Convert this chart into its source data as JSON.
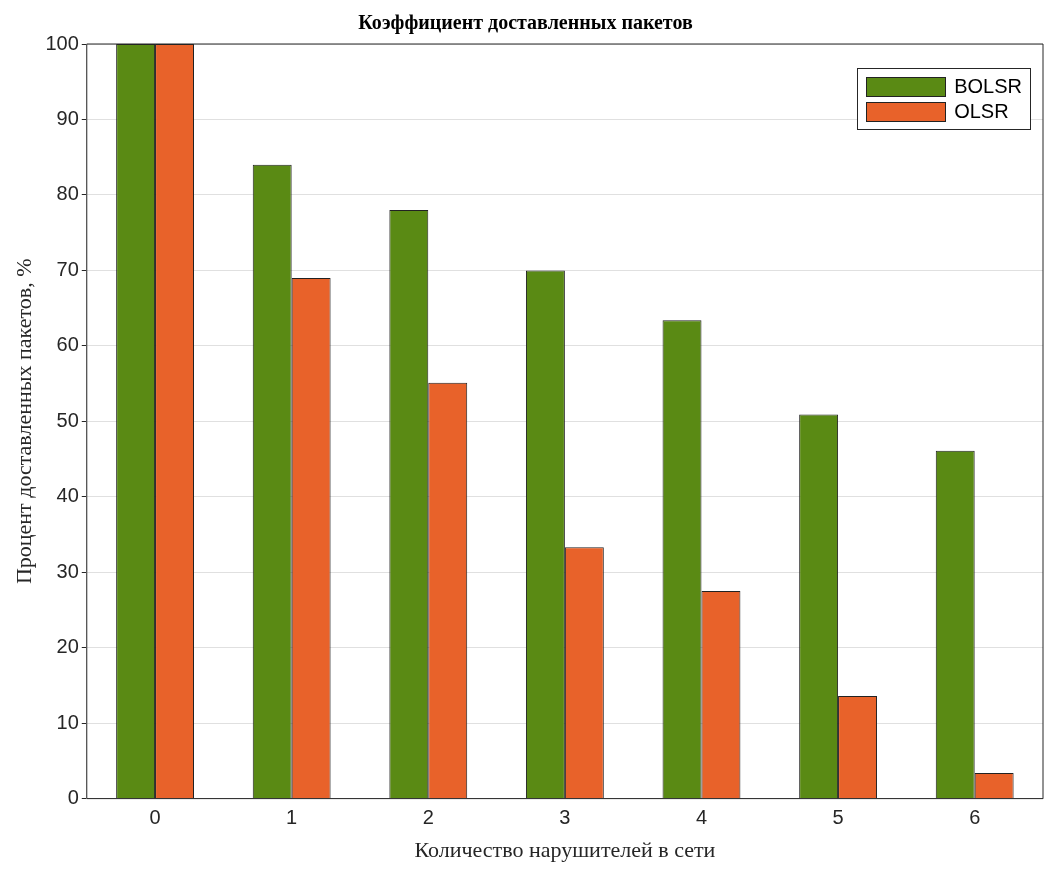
{
  "chart_data": {
    "type": "bar",
    "title": "Коэффициент доставленных пакетов",
    "xlabel": "Количество нарушителей в сети",
    "ylabel": "Процент доставленных пакетов, %",
    "categories": [
      "0",
      "1",
      "2",
      "3",
      "4",
      "5",
      "6"
    ],
    "series": [
      {
        "name": "BOLSR",
        "color": "#5a8a14",
        "values": [
          100,
          84,
          78,
          70,
          63.4,
          50.9,
          46.1
        ]
      },
      {
        "name": "OLSR",
        "color": "#e8622a",
        "values": [
          100,
          69,
          55.1,
          33.3,
          27.5,
          13.6,
          3.4
        ]
      }
    ],
    "ylim": [
      0,
      100
    ],
    "yticks": [
      0,
      10,
      20,
      30,
      40,
      50,
      60,
      70,
      80,
      90,
      100
    ],
    "grid": "y",
    "legend": "top right"
  }
}
